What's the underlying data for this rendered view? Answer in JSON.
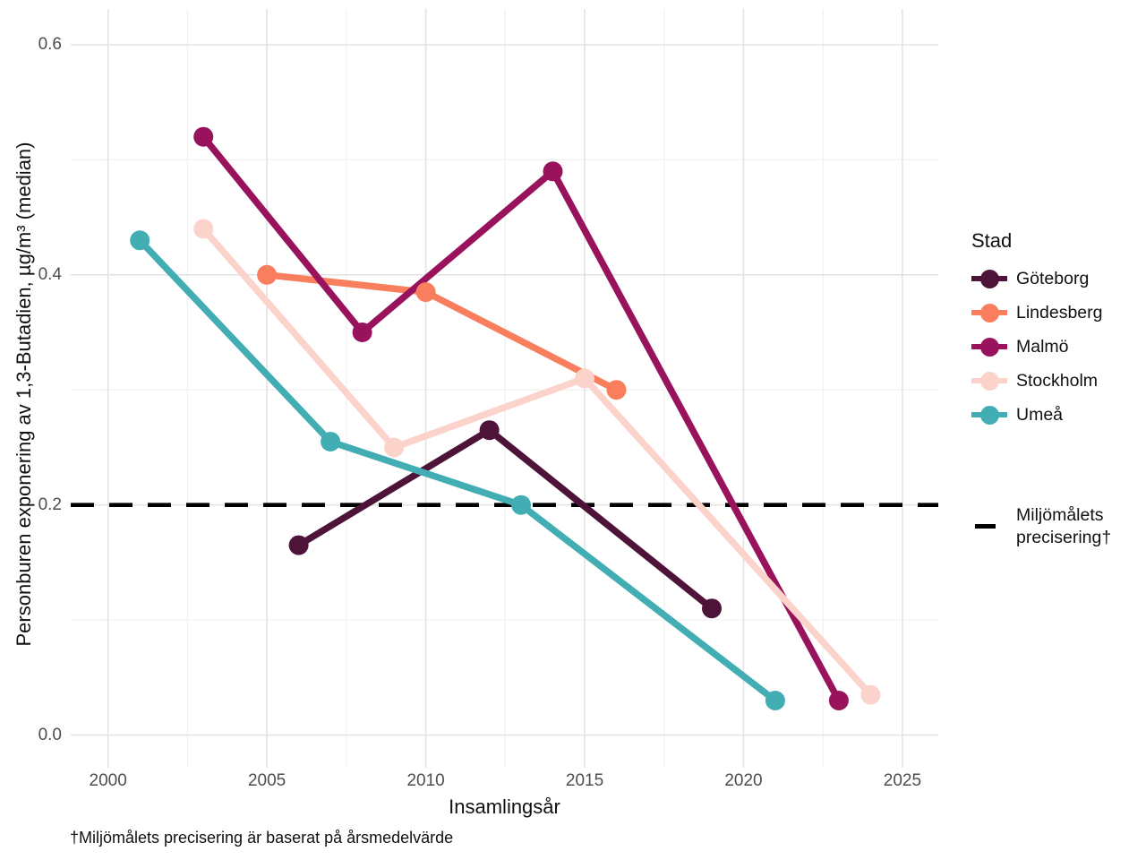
{
  "figure": {
    "footnote": "†Miljömålets precisering är baserat på årsmedelvärde"
  },
  "chart_data": {
    "type": "line",
    "title": "",
    "xlabel": "Insamlingsår",
    "ylabel": "Personburen exponering av 1,3-Butadien, µg/m³ (median)",
    "x_ticks": [
      2000,
      2005,
      2010,
      2015,
      2020,
      2025
    ],
    "y_ticks": [
      0.0,
      0.2,
      0.4,
      0.6
    ],
    "xlim": [
      1998.8,
      2026.1
    ],
    "ylim": [
      -0.028,
      0.631
    ],
    "grid": true,
    "legend_position": "right",
    "legend_title": "Stad",
    "series": [
      {
        "name": "Göteborg",
        "color": "#4d1339",
        "points": [
          [
            2006,
            0.165
          ],
          [
            2012,
            0.265
          ],
          [
            2019,
            0.11
          ]
        ]
      },
      {
        "name": "Lindesberg",
        "color": "#f97e5d",
        "points": [
          [
            2005,
            0.4
          ],
          [
            2010,
            0.385
          ],
          [
            2016,
            0.3
          ]
        ]
      },
      {
        "name": "Malmö",
        "color": "#99125c",
        "points": [
          [
            2003,
            0.52
          ],
          [
            2008,
            0.35
          ],
          [
            2014,
            0.49
          ],
          [
            2023,
            0.03
          ]
        ]
      },
      {
        "name": "Stockholm",
        "color": "#fbd3ca",
        "points": [
          [
            2003,
            0.44
          ],
          [
            2009,
            0.25
          ],
          [
            2015,
            0.31
          ],
          [
            2024,
            0.035
          ]
        ]
      },
      {
        "name": "Umeå",
        "color": "#42aeb4",
        "points": [
          [
            2001,
            0.43
          ],
          [
            2007,
            0.255
          ],
          [
            2013,
            0.2
          ],
          [
            2021,
            0.03
          ]
        ]
      }
    ],
    "reference_line": {
      "value": 0.2,
      "style": "dashed",
      "color": "#000000",
      "label": "Miljömålets precisering†",
      "label_lines": [
        "Miljömålets",
        "precisering†"
      ]
    }
  }
}
